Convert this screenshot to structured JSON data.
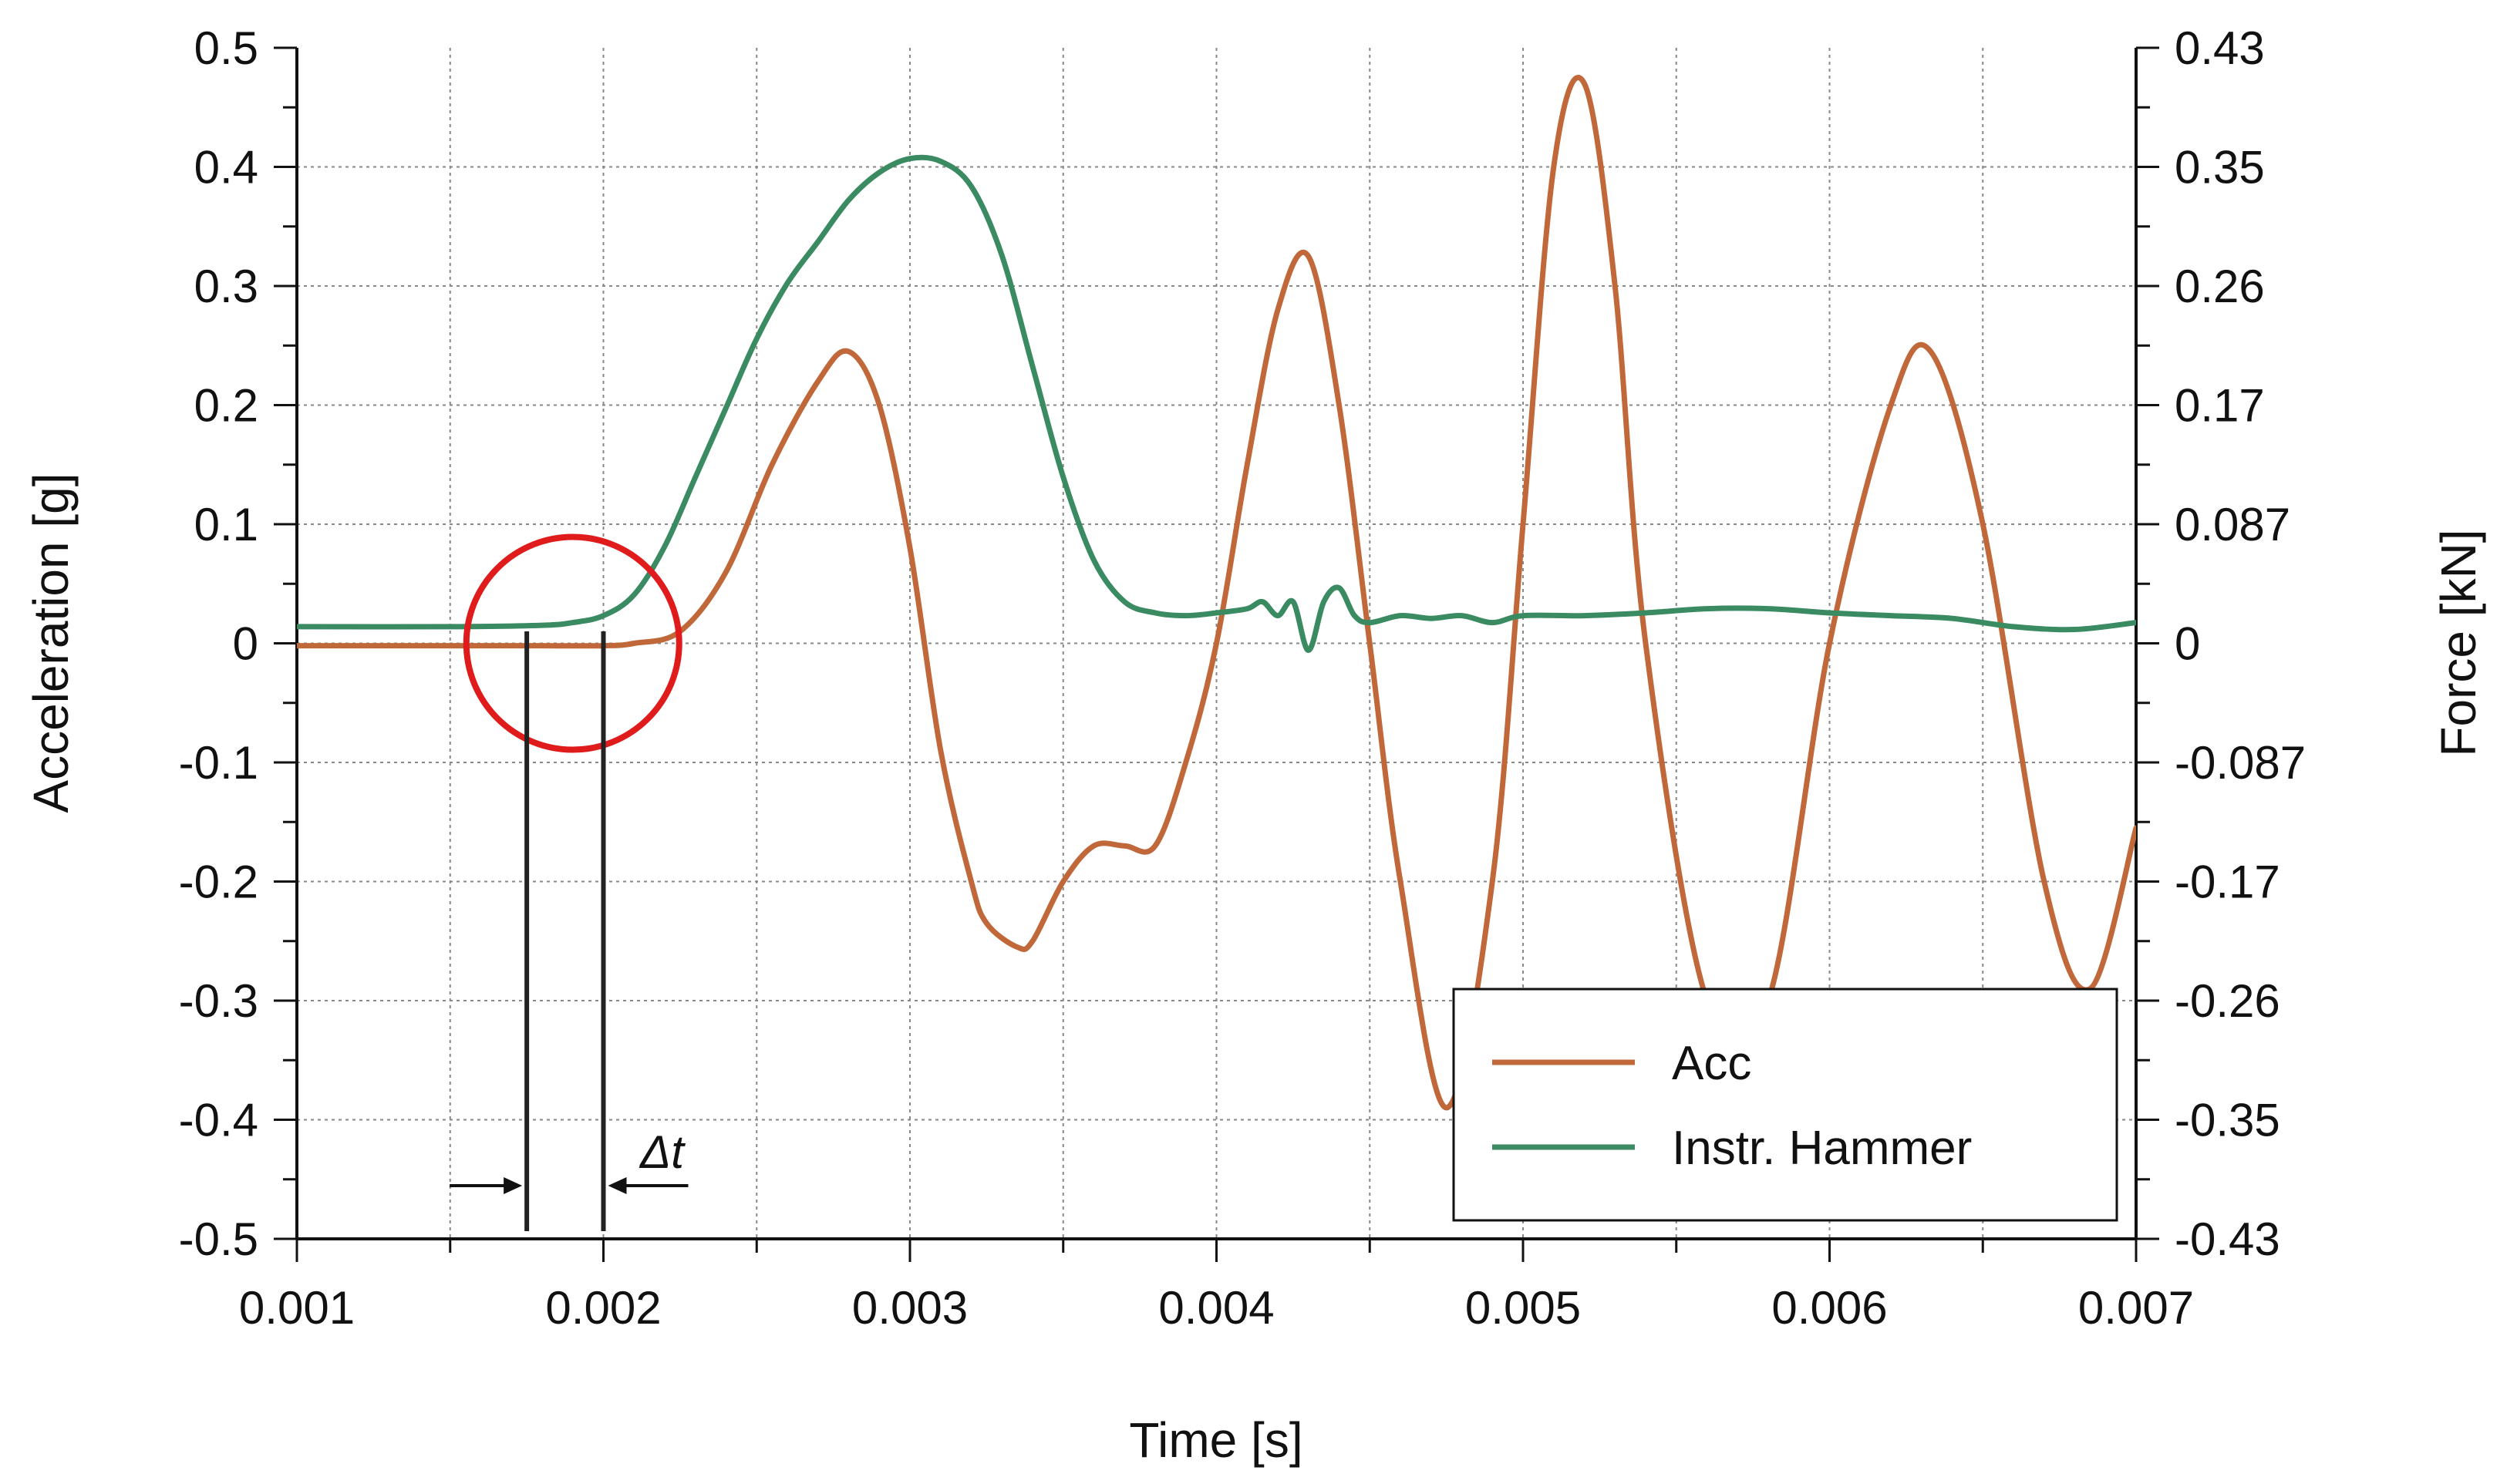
{
  "chart_data": {
    "type": "line",
    "title": "",
    "xlabel": "Time [s]",
    "ylabel": "Acceleration [g]",
    "y2label": "Force [kN]",
    "xlim": [
      0.001,
      0.007
    ],
    "ylim": [
      -0.5,
      0.5
    ],
    "y2lim": [
      -0.43,
      0.43
    ],
    "grid": true,
    "legend_position": "bottom-right",
    "x_ticks": [
      "0.001",
      "0.002",
      "0.003",
      "0.004",
      "0.005",
      "0.006",
      "0.007"
    ],
    "y_ticks": [
      "0.5",
      "0.4",
      "0.3",
      "0.2",
      "0.1",
      "0",
      "-0.1",
      "-0.2",
      "-0.3",
      "-0.4",
      "-0.5"
    ],
    "y2_ticks": [
      "0.43",
      "0.35",
      "0.26",
      "0.17",
      "0.087",
      "0",
      "-0.087",
      "-0.17",
      "-0.26",
      "-0.35",
      "-0.43"
    ],
    "series": [
      {
        "name": "Acc",
        "color": "#c0683a",
        "axis": "left",
        "x": [
          0.001,
          0.0015,
          0.0018,
          0.002,
          0.0021,
          0.00225,
          0.0024,
          0.00255,
          0.0027,
          0.0028,
          0.0029,
          0.003,
          0.0031,
          0.0032,
          0.00325,
          0.00335,
          0.0034,
          0.0035,
          0.0036,
          0.0037,
          0.0038,
          0.0039,
          0.004,
          0.0041,
          0.0042,
          0.0043,
          0.0044,
          0.0045,
          0.0046,
          0.00475,
          0.0049,
          0.005,
          0.0051,
          0.0052,
          0.0053,
          0.0054,
          0.0056,
          0.0058,
          0.006,
          0.0062,
          0.00633,
          0.0065,
          0.0067,
          0.00685,
          0.007
        ],
        "y": [
          -0.002,
          -0.002,
          -0.002,
          -0.002,
          0.0,
          0.01,
          0.06,
          0.15,
          0.22,
          0.245,
          0.2,
          0.08,
          -0.09,
          -0.2,
          -0.235,
          -0.255,
          -0.25,
          -0.2,
          -0.17,
          -0.17,
          -0.17,
          -0.1,
          0.0,
          0.15,
          0.28,
          0.325,
          0.2,
          0.0,
          -0.2,
          -0.39,
          -0.2,
          0.1,
          0.4,
          0.47,
          0.3,
          0.0,
          -0.3,
          -0.3,
          0.0,
          0.2,
          0.245,
          0.1,
          -0.2,
          -0.29,
          -0.155
        ]
      },
      {
        "name": "Instr. Hammer",
        "color": "#3a8a62",
        "axis": "right",
        "x": [
          0.001,
          0.0015,
          0.0018,
          0.0019,
          0.002,
          0.0021,
          0.0022,
          0.0023,
          0.0024,
          0.0025,
          0.0026,
          0.0027,
          0.0028,
          0.0029,
          0.003,
          0.0031,
          0.0032,
          0.0033,
          0.0034,
          0.0035,
          0.0036,
          0.0037,
          0.0038,
          0.0039,
          0.004,
          0.0041,
          0.00415,
          0.0042,
          0.00425,
          0.0043,
          0.00435,
          0.0044,
          0.00445,
          0.0045,
          0.0046,
          0.0047,
          0.0048,
          0.0049,
          0.005,
          0.0052,
          0.0054,
          0.0056,
          0.0058,
          0.006,
          0.0062,
          0.0064,
          0.0066,
          0.0068,
          0.007
        ],
        "y": [
          0.012,
          0.012,
          0.013,
          0.015,
          0.02,
          0.035,
          0.07,
          0.12,
          0.17,
          0.22,
          0.26,
          0.29,
          0.32,
          0.34,
          0.35,
          0.348,
          0.33,
          0.28,
          0.2,
          0.12,
          0.06,
          0.03,
          0.022,
          0.02,
          0.022,
          0.025,
          0.03,
          0.02,
          0.03,
          -0.005,
          0.03,
          0.04,
          0.02,
          0.015,
          0.02,
          0.018,
          0.02,
          0.015,
          0.02,
          0.02,
          0.022,
          0.025,
          0.025,
          0.022,
          0.02,
          0.018,
          0.012,
          0.01,
          0.015
        ]
      }
    ],
    "annotations": [
      {
        "type": "circle",
        "x": 0.0019,
        "y": 0.0,
        "label": ""
      },
      {
        "type": "vline",
        "x": 0.00175,
        "label": ""
      },
      {
        "type": "vline",
        "x": 0.002,
        "label": ""
      },
      {
        "type": "dimension",
        "x_from": 0.00175,
        "x_to": 0.002,
        "label": "Δt"
      }
    ]
  }
}
